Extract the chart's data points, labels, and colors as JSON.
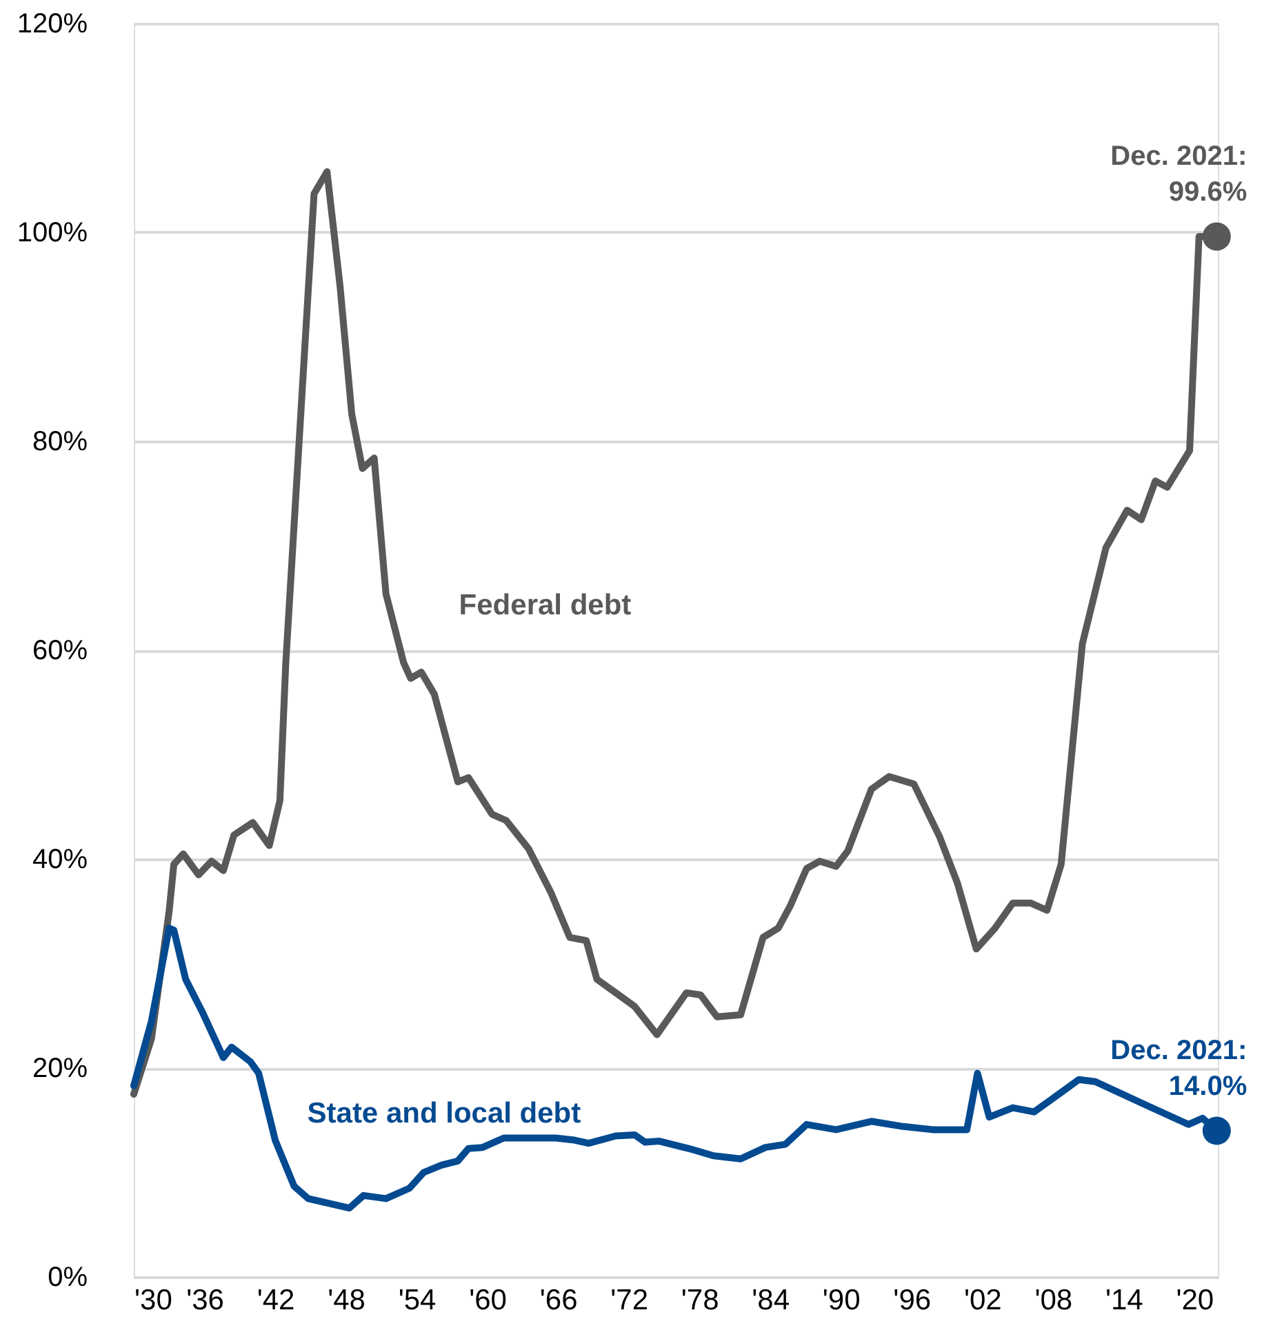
{
  "chart_data": {
    "type": "line",
    "xlim": [
      1930,
      2022
    ],
    "xticks": [
      {
        "value": 1930,
        "label": "'30"
      },
      {
        "value": 1936,
        "label": "'36"
      },
      {
        "value": 1942,
        "label": "'42"
      },
      {
        "value": 1948,
        "label": "'48"
      },
      {
        "value": 1954,
        "label": "'54"
      },
      {
        "value": 1960,
        "label": "'60"
      },
      {
        "value": 1966,
        "label": "'66"
      },
      {
        "value": 1972,
        "label": "'72"
      },
      {
        "value": 1978,
        "label": "'78"
      },
      {
        "value": 1984,
        "label": "'84"
      },
      {
        "value": 1990,
        "label": "'90"
      },
      {
        "value": 1996,
        "label": "'96"
      },
      {
        "value": 2002,
        "label": "'02"
      },
      {
        "value": 2008,
        "label": "'08"
      },
      {
        "value": 2014,
        "label": "'14"
      },
      {
        "value": 2020,
        "label": "'20"
      }
    ],
    "ylim": [
      0,
      120
    ],
    "yticks": [
      {
        "value": 0,
        "label": "0%"
      },
      {
        "value": 20,
        "label": "20%"
      },
      {
        "value": 40,
        "label": "40%"
      },
      {
        "value": 60,
        "label": "60%"
      },
      {
        "value": 80,
        "label": "80%"
      },
      {
        "value": 100,
        "label": "100%"
      },
      {
        "value": 120,
        "label": "120%"
      }
    ],
    "grid": "y",
    "legend": false,
    "line_style": "solid",
    "series": [
      {
        "name": "Federal debt",
        "color": "#58595b",
        "x": [
          1930,
          1931.5,
          1933,
          1933.4,
          1934.2,
          1935.5,
          1936.6,
          1937.6,
          1938.5,
          1940.1,
          1941.5,
          1942.4,
          1942.9,
          1945.3,
          1946.4,
          1947.5,
          1948.5,
          1949.4,
          1950.4,
          1951.4,
          1952.9,
          1953.5,
          1954.4,
          1955.5,
          1957.5,
          1958.4,
          1960.4,
          1961.6,
          1963.5,
          1965.4,
          1967.0,
          1968.4,
          1969.3,
          1970.9,
          1972.5,
          1974.4,
          1976.9,
          1978.1,
          1979.5,
          1981.5,
          1983.4,
          1984.7,
          1985.7,
          1987.1,
          1988.2,
          1989.6,
          1990.6,
          1992.6,
          1994.1,
          1996.2,
          1998.4,
          1999.9,
          2001.5,
          2003.1,
          2004.6,
          2006.1,
          2007.5,
          2008.7,
          2009.9,
          2010.5,
          2012.5,
          2014.3,
          2015.5,
          2016.7,
          2017.7,
          2019.6,
          2020.4,
          2021.9
        ],
        "values": [
          17.5,
          22.8,
          35,
          39.5,
          40.5,
          38.5,
          39.8,
          38.9,
          42.3,
          43.5,
          41.3,
          45.6,
          58.8,
          103.7,
          105.8,
          94.9,
          82.6,
          77.4,
          78.4,
          65.4,
          58.8,
          57.3,
          57.9,
          55.8,
          47.4,
          47.8,
          44.3,
          43.7,
          41.0,
          36.8,
          32.5,
          32.2,
          28.5,
          27.2,
          25.9,
          23.2,
          27.2,
          27,
          24.9,
          25.1,
          32.5,
          33.4,
          35.5,
          39.1,
          39.8,
          39.3,
          40.8,
          46.7,
          47.9,
          47.2,
          42.1,
          37.7,
          31.4,
          33.4,
          35.8,
          35.8,
          35.1,
          39.5,
          53.6,
          60.6,
          69.8,
          73.4,
          72.5,
          76.2,
          75.6,
          79.1,
          99.6,
          99.6
        ]
      },
      {
        "name": "State and local debt",
        "color": "#034a91",
        "x": [
          1930,
          1931.5,
          1933,
          1933.4,
          1934.4,
          1935.8,
          1937.6,
          1938.3,
          1939.9,
          1940.6,
          1942,
          1943.6,
          1944.8,
          1948.3,
          1949.5,
          1951.4,
          1953.4,
          1954.6,
          1956.1,
          1957.5,
          1958.4,
          1959.6,
          1961.4,
          1965.8,
          1967.4,
          1968.6,
          1970.9,
          1972.5,
          1973.4,
          1974.6,
          1977.4,
          1979.2,
          1981.5,
          1983.6,
          1985.3,
          1987.1,
          1989.6,
          1992.6,
          1995.3,
          1997.8,
          2000.7,
          2001.6,
          2002.6,
          2004.6,
          2006.4,
          2008.5,
          2010.2,
          2011.6,
          2016,
          2019.5,
          2020.7,
          2021.9
        ],
        "values": [
          18.3,
          24.5,
          33.4,
          33.2,
          28.5,
          25.4,
          21,
          22,
          20.6,
          19.5,
          13.1,
          8.7,
          7.5,
          6.6,
          7.8,
          7.5,
          8.5,
          10,
          10.7,
          11.1,
          12.3,
          12.4,
          13.3,
          13.3,
          13.1,
          12.8,
          13.5,
          13.6,
          12.9,
          13.0,
          12.2,
          11.6,
          11.3,
          12.4,
          12.7,
          14.6,
          14.1,
          14.9,
          14.4,
          14.1,
          14.1,
          19.5,
          15.3,
          16.2,
          15.8,
          17.5,
          18.9,
          18.7,
          16.4,
          14.6,
          15.2,
          14.0
        ]
      }
    ],
    "annotations": [
      {
        "text": "Dec. 2021:\n99.6%",
        "x": 2021.9,
        "y": 99.6
      },
      {
        "text": "Dec. 2021:\n14.0%",
        "x": 2021.9,
        "y": 14.0
      }
    ]
  }
}
